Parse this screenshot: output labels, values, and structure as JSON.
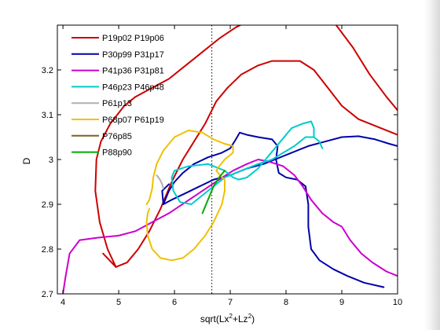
{
  "chart_data": {
    "type": "line",
    "title": "",
    "xlabel": "sqrt(Lx²+Lz²)",
    "xlabel_parts": {
      "base": "sqrt(Lx",
      "sup1": "2",
      "mid": "+Lz",
      "sup2": "2",
      "end": ")"
    },
    "ylabel": "D",
    "xlim": [
      3.9,
      10
    ],
    "ylim": [
      2.7,
      3.3
    ],
    "xticks": [
      4,
      5,
      6,
      7,
      8,
      9,
      10
    ],
    "yticks": [
      2.7,
      2.8,
      2.9,
      3.0,
      3.1,
      3.2
    ],
    "ytick_labels": [
      "2.7",
      "2.8",
      "2.9",
      "3",
      "3.1",
      "3.2"
    ],
    "grid": false,
    "legend_position": "top-left",
    "reference_line": {
      "x": 6.67,
      "style": "dotted",
      "color": "#000000"
    },
    "series": [
      {
        "name": "P19p02 P19p06",
        "color": "#cc0000",
        "segments": [
          [
            [
              4.72,
              2.79
            ],
            [
              4.95,
              2.76
            ],
            [
              5.15,
              2.77
            ],
            [
              5.35,
              2.8
            ],
            [
              5.55,
              2.84
            ],
            [
              5.75,
              2.89
            ],
            [
              5.95,
              2.95
            ],
            [
              6.15,
              3.0
            ],
            [
              6.35,
              3.04
            ],
            [
              6.55,
              3.08
            ],
            [
              6.75,
              3.13
            ],
            [
              6.95,
              3.16
            ],
            [
              7.2,
              3.19
            ],
            [
              7.5,
              3.21
            ],
            [
              7.75,
              3.22
            ],
            [
              8.0,
              3.22
            ],
            [
              8.25,
              3.22
            ],
            [
              8.5,
              3.2
            ],
            [
              8.75,
              3.16
            ],
            [
              9.0,
              3.12
            ],
            [
              9.3,
              3.09
            ],
            [
              9.7,
              3.07
            ],
            [
              10.0,
              3.055
            ]
          ],
          [
            [
              4.95,
              2.76
            ],
            [
              4.8,
              2.8
            ],
            [
              4.66,
              2.86
            ],
            [
              4.58,
              2.93
            ],
            [
              4.6,
              3.0
            ],
            [
              4.68,
              3.04
            ],
            [
              4.85,
              3.08
            ],
            [
              5.1,
              3.12
            ],
            [
              5.3,
              3.14
            ],
            [
              5.6,
              3.16
            ],
            [
              5.9,
              3.18
            ],
            [
              6.2,
              3.21
            ],
            [
              6.5,
              3.24
            ],
            [
              6.8,
              3.27
            ],
            [
              7.1,
              3.295
            ],
            [
              7.5,
              3.32
            ],
            [
              7.9,
              3.33
            ],
            [
              8.3,
              3.33
            ],
            [
              8.6,
              3.32
            ],
            [
              8.9,
              3.3
            ],
            [
              9.2,
              3.25
            ],
            [
              9.5,
              3.19
            ],
            [
              9.8,
              3.14
            ],
            [
              10.0,
              3.11
            ]
          ]
        ]
      },
      {
        "name": "P30p99 P31p17",
        "color": "#0000aa",
        "segments": [
          [
            [
              5.8,
              2.9
            ],
            [
              5.95,
              2.91
            ],
            [
              6.2,
              2.925
            ],
            [
              6.45,
              2.94
            ],
            [
              6.7,
              2.955
            ],
            [
              7.0,
              2.965
            ],
            [
              7.3,
              2.98
            ],
            [
              7.6,
              2.99
            ],
            [
              7.8,
              3.0
            ],
            [
              8.1,
              3.015
            ],
            [
              8.4,
              3.03
            ],
            [
              8.7,
              3.04
            ],
            [
              9.0,
              3.05
            ],
            [
              9.3,
              3.052
            ],
            [
              9.6,
              3.045
            ],
            [
              9.85,
              3.035
            ],
            [
              10.0,
              3.03
            ]
          ],
          [
            [
              5.8,
              2.9
            ],
            [
              5.9,
              2.93
            ],
            [
              6.0,
              2.95
            ],
            [
              6.15,
              2.97
            ],
            [
              6.35,
              2.99
            ],
            [
              6.6,
              3.005
            ],
            [
              6.85,
              3.015
            ],
            [
              7.0,
              3.025
            ],
            [
              7.1,
              3.045
            ],
            [
              7.17,
              3.06
            ],
            [
              7.3,
              3.055
            ],
            [
              7.5,
              3.05
            ],
            [
              7.75,
              3.045
            ],
            [
              7.85,
              3.03
            ],
            [
              7.82,
              3.0
            ],
            [
              7.87,
              2.97
            ],
            [
              8.0,
              2.96
            ],
            [
              8.2,
              2.955
            ],
            [
              8.35,
              2.94
            ],
            [
              8.4,
              2.9
            ],
            [
              8.4,
              2.85
            ],
            [
              8.45,
              2.8
            ],
            [
              8.6,
              2.775
            ],
            [
              8.85,
              2.755
            ],
            [
              9.1,
              2.74
            ],
            [
              9.4,
              2.725
            ],
            [
              9.75,
              2.715
            ]
          ],
          [
            [
              5.8,
              2.9
            ],
            [
              5.78,
              2.93
            ],
            [
              5.9,
              2.945
            ]
          ]
        ]
      },
      {
        "name": "P41p36 P31p81",
        "color": "#cc00cc",
        "segments": [
          [
            [
              4.0,
              2.7
            ],
            [
              4.05,
              2.74
            ],
            [
              4.12,
              2.79
            ],
            [
              4.3,
              2.82
            ],
            [
              4.6,
              2.825
            ],
            [
              5.0,
              2.83
            ],
            [
              5.3,
              2.84
            ],
            [
              5.6,
              2.86
            ],
            [
              5.9,
              2.88
            ],
            [
              6.2,
              2.905
            ],
            [
              6.5,
              2.93
            ],
            [
              6.8,
              2.955
            ],
            [
              7.05,
              2.975
            ],
            [
              7.3,
              2.99
            ],
            [
              7.5,
              3.0
            ],
            [
              7.7,
              2.995
            ],
            [
              7.95,
              2.985
            ],
            [
              8.15,
              2.965
            ],
            [
              8.3,
              2.94
            ],
            [
              8.45,
              2.91
            ],
            [
              8.65,
              2.88
            ],
            [
              8.85,
              2.86
            ],
            [
              9.0,
              2.85
            ],
            [
              9.15,
              2.82
            ],
            [
              9.35,
              2.79
            ],
            [
              9.55,
              2.77
            ],
            [
              9.8,
              2.75
            ],
            [
              10.0,
              2.74
            ]
          ]
        ]
      },
      {
        "name": "P46p23 P46p48",
        "color": "#00cccc",
        "segments": [
          [
            [
              6.3,
              2.9
            ],
            [
              6.6,
              2.93
            ],
            [
              6.9,
              2.96
            ],
            [
              7.2,
              2.975
            ],
            [
              7.5,
              2.99
            ],
            [
              7.75,
              3.0
            ],
            [
              7.95,
              3.015
            ],
            [
              8.15,
              3.03
            ],
            [
              8.35,
              3.05
            ],
            [
              8.5,
              3.05
            ],
            [
              8.6,
              3.04
            ],
            [
              8.65,
              3.025
            ]
          ],
          [
            [
              6.3,
              2.9
            ],
            [
              6.1,
              2.905
            ],
            [
              5.98,
              2.93
            ],
            [
              5.95,
              2.96
            ],
            [
              6.0,
              2.975
            ],
            [
              6.25,
              2.985
            ],
            [
              6.6,
              2.99
            ],
            [
              6.9,
              2.975
            ],
            [
              7.05,
              2.96
            ],
            [
              7.15,
              2.955
            ],
            [
              7.3,
              2.96
            ],
            [
              7.5,
              2.98
            ],
            [
              7.7,
              3.01
            ],
            [
              7.9,
              3.04
            ],
            [
              8.1,
              3.07
            ],
            [
              8.3,
              3.08
            ],
            [
              8.45,
              3.085
            ],
            [
              8.5,
              3.07
            ],
            [
              8.5,
              3.05
            ]
          ]
        ]
      },
      {
        "name": "P61p13",
        "color": "#b0b0b0",
        "segments": [
          [
            [
              5.68,
              2.965
            ],
            [
              5.74,
              2.955
            ],
            [
              5.78,
              2.945
            ],
            [
              5.8,
              2.935
            ]
          ]
        ]
      },
      {
        "name": "P68p07 P61p19",
        "color": "#f0c000",
        "segments": [
          [
            [
              5.5,
              2.9
            ],
            [
              5.55,
              2.91
            ],
            [
              5.6,
              2.935
            ],
            [
              5.62,
              2.96
            ],
            [
              5.68,
              2.99
            ],
            [
              5.8,
              3.02
            ],
            [
              6.0,
              3.05
            ],
            [
              6.25,
              3.065
            ],
            [
              6.5,
              3.06
            ],
            [
              6.7,
              3.045
            ],
            [
              6.9,
              3.035
            ],
            [
              7.05,
              3.03
            ],
            [
              7.05,
              3.015
            ],
            [
              6.9,
              3.0
            ],
            [
              6.8,
              2.985
            ],
            [
              6.75,
              2.975
            ],
            [
              6.85,
              2.96
            ],
            [
              6.9,
              2.955
            ],
            [
              6.9,
              2.93
            ],
            [
              6.85,
              2.9
            ],
            [
              6.7,
              2.86
            ],
            [
              6.55,
              2.83
            ],
            [
              6.35,
              2.8
            ],
            [
              6.15,
              2.78
            ],
            [
              5.95,
              2.775
            ],
            [
              5.75,
              2.78
            ],
            [
              5.6,
              2.8
            ],
            [
              5.52,
              2.83
            ],
            [
              5.5,
              2.86
            ],
            [
              5.52,
              2.88
            ],
            [
              5.55,
              2.89
            ]
          ]
        ]
      },
      {
        "name": "P76p85",
        "color": "#806020",
        "segments": []
      },
      {
        "name": "P88p90",
        "color": "#00aa00",
        "segments": [
          [
            [
              6.5,
              2.88
            ],
            [
              6.6,
              2.91
            ],
            [
              6.7,
              2.94
            ],
            [
              6.8,
              2.96
            ],
            [
              6.9,
              2.975
            ]
          ]
        ]
      }
    ]
  }
}
